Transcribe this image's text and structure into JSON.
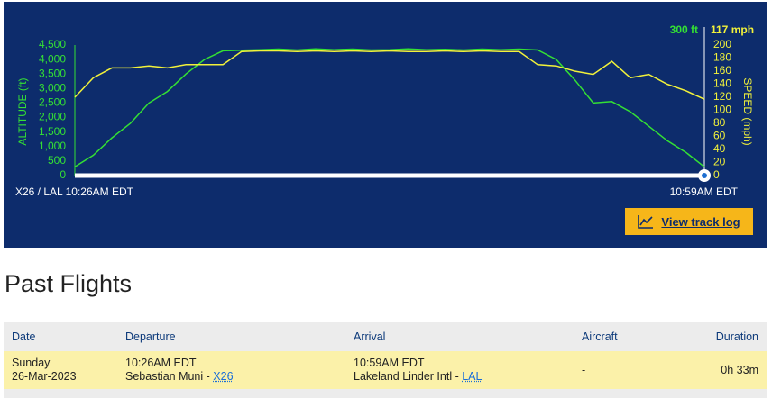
{
  "flight_panel": {
    "current_altitude": "300 ft",
    "current_speed": "117 mph",
    "origin_time": "X26 / LAL 10:26AM EDT",
    "arrival_time": "10:59AM EDT",
    "button": "View track log"
  },
  "chart_data": {
    "type": "line",
    "y_label": "ALTITUDE (ft)",
    "y2_label": "SPEED (mph)",
    "series": [
      {
        "name": "Altitude",
        "color": "#34e034",
        "values": [
          300,
          700,
          1300,
          1800,
          2500,
          2900,
          3500,
          4000,
          4300,
          4320,
          4340,
          4360,
          4330,
          4370,
          4340,
          4360,
          4330,
          4340,
          4370,
          4340,
          4350,
          4330,
          4360,
          4340,
          4360,
          4330,
          4000,
          3300,
          2500,
          2550,
          2200,
          1700,
          1200,
          800,
          300
        ]
      },
      {
        "name": "Speed",
        "color": "#f2f23a",
        "axis": "y2",
        "values": [
          120,
          150,
          165,
          165,
          168,
          165,
          170,
          170,
          170,
          190,
          191,
          191,
          190,
          191,
          190,
          191,
          190,
          191,
          190,
          190,
          191,
          190,
          191,
          190,
          190,
          170,
          168,
          160,
          155,
          175,
          150,
          155,
          140,
          130,
          117
        ]
      }
    ],
    "ylim": [
      0,
      4500
    ],
    "yticks": [
      0,
      500,
      {
        "value": 1000,
        "label": "1,000"
      },
      {
        "value": 1500,
        "label": "1,500"
      },
      {
        "value": 2000,
        "label": "2,000"
      },
      {
        "value": 2500,
        "label": "2,500"
      },
      {
        "value": 3000,
        "label": "3,000"
      },
      {
        "value": 3500,
        "label": "3,500"
      },
      {
        "value": 4000,
        "label": "4,000"
      },
      {
        "value": 4500,
        "label": "4,500"
      }
    ],
    "y2lim": [
      0,
      200
    ],
    "y2ticks": [
      0,
      20,
      40,
      60,
      80,
      100,
      120,
      140,
      160,
      180,
      200
    ],
    "grid": false
  },
  "past_flights": {
    "title": "Past Flights",
    "headers": [
      "Date",
      "Departure",
      "Arrival",
      "Aircraft",
      "Duration"
    ],
    "rows": [
      {
        "day": "Sunday",
        "date": "26-Mar-2023",
        "dep_time": "10:26AM EDT",
        "dep_airport": "Sebastian Muni -",
        "dep_code": "X26",
        "arr_time": "10:59AM EDT",
        "arr_airport": "Lakeland Linder Intl -",
        "arr_code": "LAL",
        "aircraft": "-",
        "duration": "0h 33m"
      }
    ]
  }
}
